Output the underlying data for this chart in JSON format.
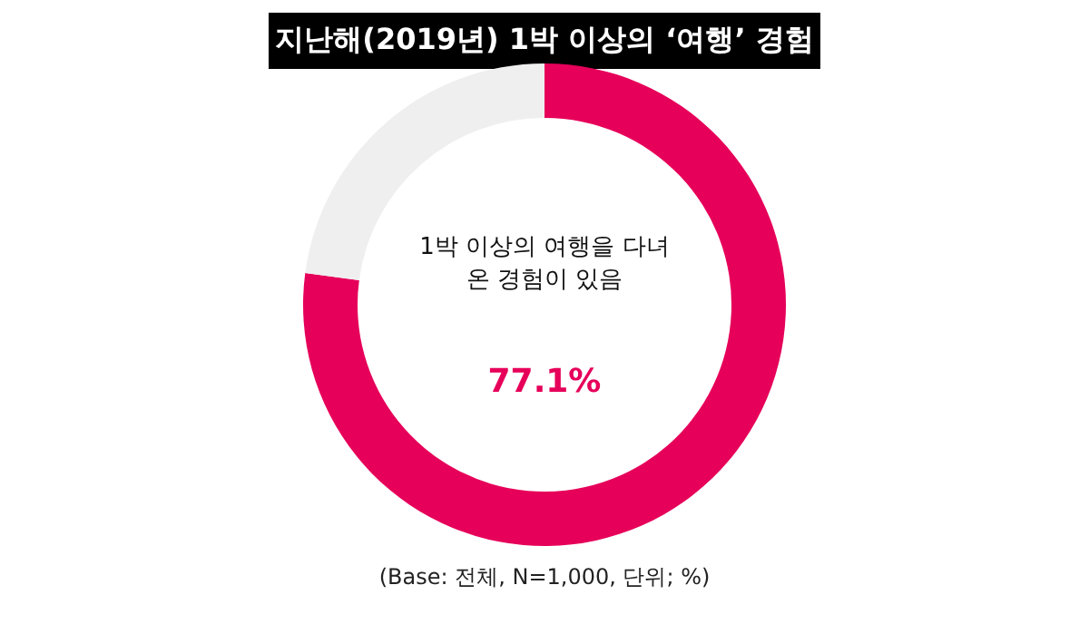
{
  "chart_data": {
    "type": "donut",
    "title": "지난해(2019년) 1박 이상의 ‘여행’ 경험",
    "categories": [
      "1박 이상의 여행을 다녀 온 경험이 있음",
      null
    ],
    "values": [
      77.1,
      22.9
    ],
    "colors": [
      "#e6005a",
      "#efefef"
    ],
    "value_labels": [
      "77.1%",
      null
    ],
    "annotations": [
      "(Base: 전체, N=1,000, 단위; %)"
    ],
    "legend": false
  }
}
